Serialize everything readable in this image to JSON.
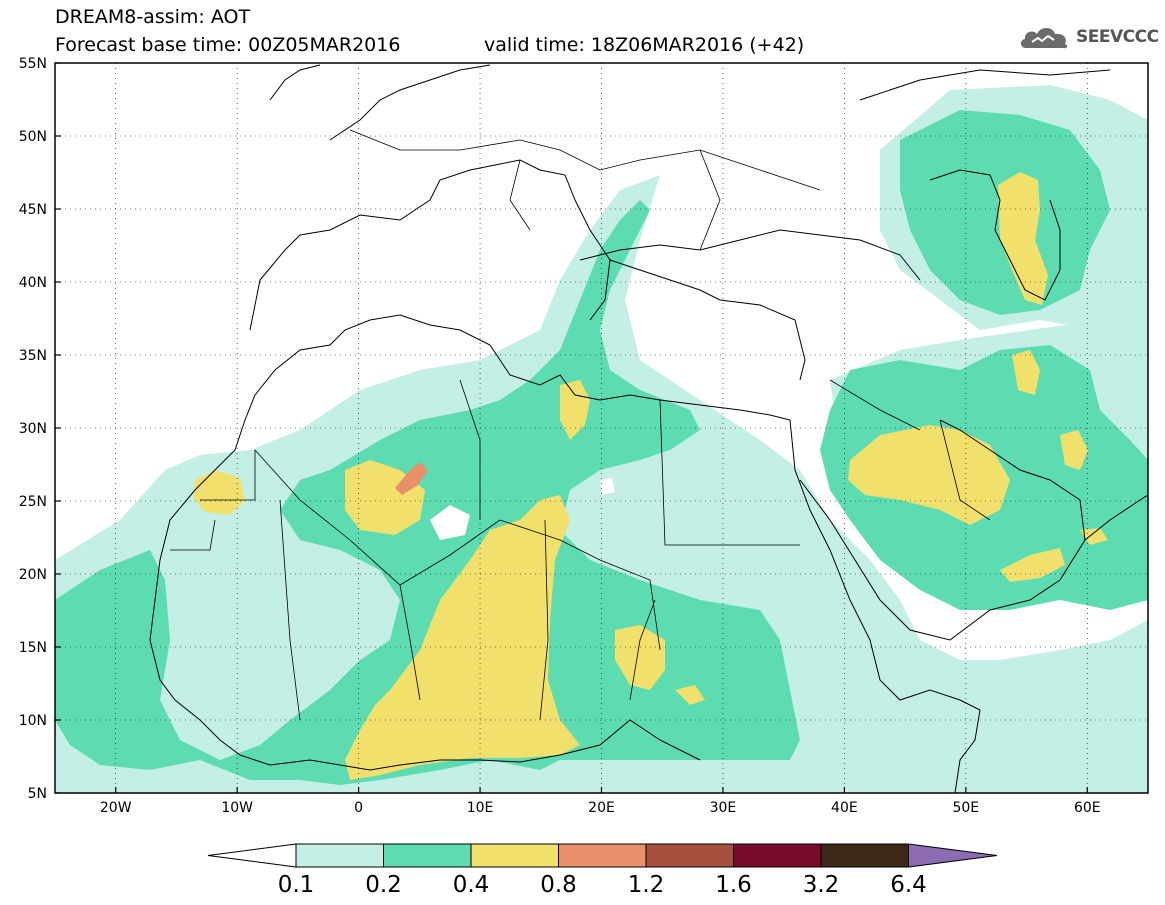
{
  "header": {
    "title": "DREAM8-assim: AOT",
    "base_time": "Forecast base time: 00Z05MAR2016",
    "valid_time": "valid time: 18Z06MAR2016 (+42)",
    "logo_text": "SEEVCCC",
    "logo_icon": "cloud-icon"
  },
  "map": {
    "lon_range": [
      -25,
      65
    ],
    "lat_range": [
      5,
      55
    ],
    "lon_ticks": [
      "20W",
      "10W",
      "0",
      "10E",
      "20E",
      "30E",
      "40E",
      "50E",
      "60E"
    ],
    "lat_ticks": [
      "55N",
      "50N",
      "45N",
      "40N",
      "35N",
      "30N",
      "25N",
      "20N",
      "15N",
      "10N",
      "5N"
    ],
    "grid": "dotted"
  },
  "colorbar": {
    "labels": [
      "0.1",
      "0.2",
      "0.4",
      "0.8",
      "1.2",
      "1.6",
      "3.2",
      "6.4"
    ],
    "colors": [
      "#ffffff",
      "#c4efe6",
      "#5ddcb1",
      "#f2e06c",
      "#e8906a",
      "#a8503f",
      "#7a0b2b",
      "#3d2717",
      "#8c6bb1"
    ]
  }
}
